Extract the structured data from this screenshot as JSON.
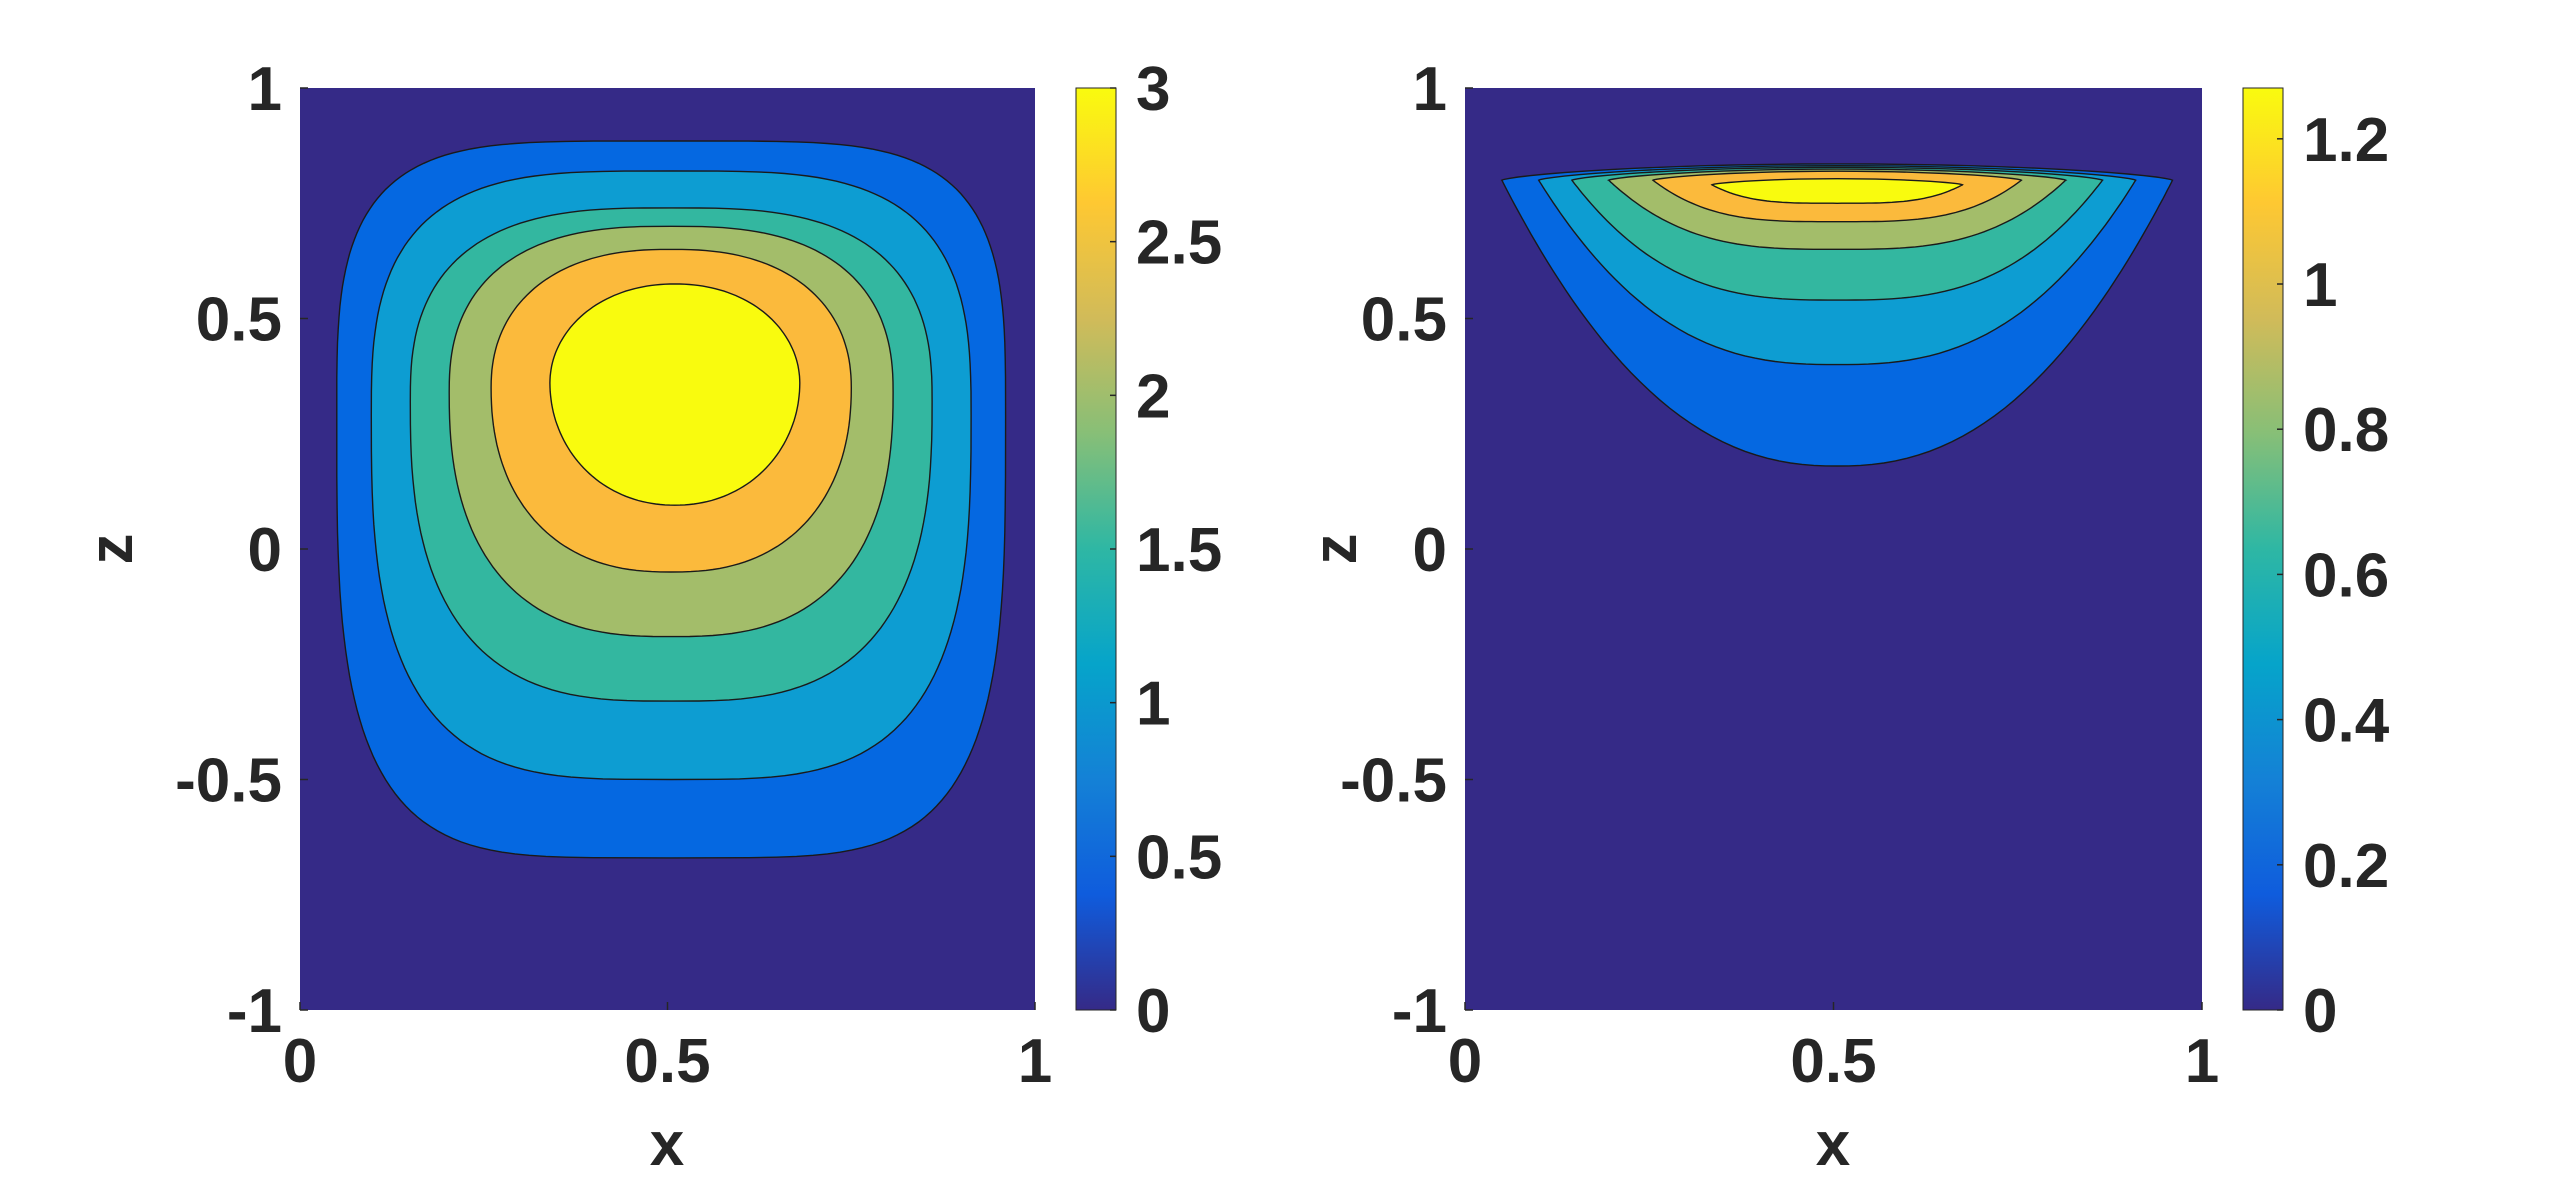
{
  "chart_data": [
    {
      "type": "contour",
      "xlabel": "x",
      "ylabel": "z",
      "xlim": [
        0,
        1
      ],
      "ylim": [
        -1,
        1
      ],
      "x_ticks": [
        "0",
        "0.5",
        "1"
      ],
      "y_ticks": [
        "1",
        "0.5",
        "0",
        "-0.5",
        "-1"
      ],
      "colorbar": {
        "range": [
          0,
          3
        ],
        "ticks": [
          "0",
          "0.5",
          "1",
          "1.5",
          "2",
          "2.5",
          "3"
        ],
        "colormap": "parula"
      },
      "levels": [
        0,
        0.5,
        1,
        1.5,
        2,
        2.5,
        3
      ],
      "level_colors": [
        "#352a87",
        "#0568e1",
        "#0d9dd2",
        "#33b7a0",
        "#a3bd6a",
        "#fbba3c",
        "#f9fb0e"
      ],
      "peak": {
        "x": 0.5,
        "z": 0.35,
        "value": 3
      }
    },
    {
      "type": "contour",
      "xlabel": "x",
      "ylabel": "z",
      "xlim": [
        0,
        1
      ],
      "ylim": [
        -1,
        1
      ],
      "x_ticks": [
        "0",
        "0.5",
        "1"
      ],
      "y_ticks": [
        "1",
        "0.5",
        "0",
        "-0.5",
        "-1"
      ],
      "colorbar": {
        "range": [
          0,
          1.27
        ],
        "ticks": [
          "0",
          "0.2",
          "0.4",
          "0.6",
          "0.8",
          "1",
          "1.2"
        ],
        "colormap": "parula"
      },
      "levels": [
        0,
        0.18,
        0.36,
        0.54,
        0.72,
        0.9,
        1.08
      ],
      "level_colors": [
        "#352a87",
        "#0568e1",
        "#0d9dd2",
        "#33b7a0",
        "#a3bd6a",
        "#fbba3c",
        "#f9fb0e"
      ],
      "peak": {
        "x": 0.5,
        "z": 0.78,
        "value": 1.27
      }
    }
  ]
}
